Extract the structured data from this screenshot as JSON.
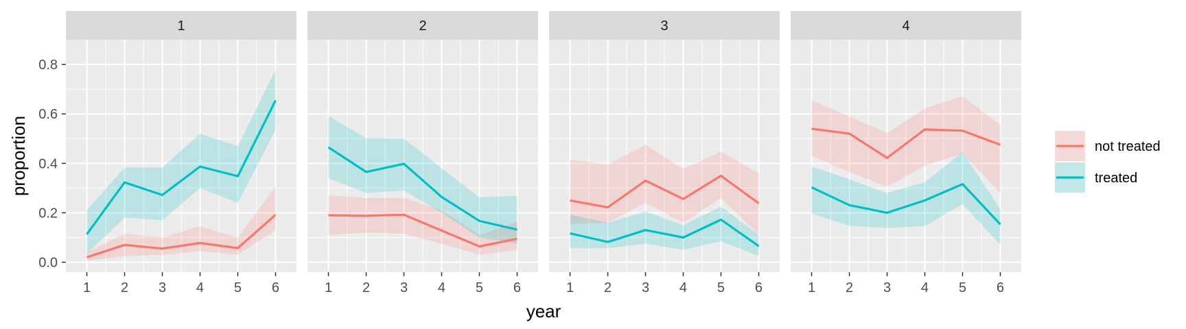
{
  "chart_data": {
    "type": "line",
    "xlabel": "year",
    "ylabel": "proportion",
    "x": [
      1,
      2,
      3,
      4,
      5,
      6
    ],
    "xticks": [
      "1",
      "2",
      "3",
      "4",
      "5",
      "6"
    ],
    "ylim": [
      -0.04,
      0.9
    ],
    "yticks": [
      "0.0",
      "0.2",
      "0.4",
      "0.6",
      "0.8"
    ],
    "grid": true,
    "legend_position": "right",
    "colors": {
      "not treated": "#F8766D",
      "treated": "#00BFC4"
    },
    "panels": [
      {
        "label": "1",
        "series": [
          {
            "name": "not treated",
            "values": [
              0.02,
              0.07,
              0.055,
              0.078,
              0.057,
              0.192
            ],
            "lower": [
              0.005,
              0.025,
              0.03,
              0.045,
              0.03,
              0.13
            ],
            "upper": [
              0.04,
              0.115,
              0.1,
              0.145,
              0.1,
              0.305
            ]
          },
          {
            "name": "treated",
            "values": [
              0.113,
              0.323,
              0.272,
              0.387,
              0.348,
              0.655
            ],
            "lower": [
              0.035,
              0.18,
              0.17,
              0.3,
              0.24,
              0.535
            ],
            "upper": [
              0.21,
              0.383,
              0.383,
              0.52,
              0.47,
              0.778
            ]
          }
        ]
      },
      {
        "label": "2",
        "series": [
          {
            "name": "not treated",
            "values": [
              0.19,
              0.188,
              0.192,
              0.128,
              0.064,
              0.095
            ],
            "lower": [
              0.11,
              0.12,
              0.115,
              0.075,
              0.03,
              0.05
            ],
            "upper": [
              0.27,
              0.26,
              0.26,
              0.21,
              0.11,
              0.165
            ]
          },
          {
            "name": "treated",
            "values": [
              0.465,
              0.365,
              0.398,
              0.264,
              0.167,
              0.132
            ],
            "lower": [
              0.34,
              0.28,
              0.29,
              0.2,
              0.1,
              0.075
            ],
            "upper": [
              0.592,
              0.502,
              0.5,
              0.38,
              0.263,
              0.268
            ]
          }
        ]
      },
      {
        "label": "3",
        "series": [
          {
            "name": "not treated",
            "values": [
              0.25,
              0.222,
              0.33,
              0.256,
              0.35,
              0.238
            ],
            "lower": [
              0.155,
              0.16,
              0.24,
              0.16,
              0.26,
              0.11
            ],
            "upper": [
              0.415,
              0.395,
              0.475,
              0.378,
              0.448,
              0.36
            ]
          },
          {
            "name": "treated",
            "values": [
              0.117,
              0.082,
              0.13,
              0.1,
              0.172,
              0.065
            ],
            "lower": [
              0.058,
              0.057,
              0.075,
              0.05,
              0.085,
              0.025
            ],
            "upper": [
              0.192,
              0.16,
              0.205,
              0.15,
              0.225,
              0.11
            ]
          }
        ]
      },
      {
        "label": "4",
        "series": [
          {
            "name": "not treated",
            "values": [
              0.54,
              0.52,
              0.422,
              0.537,
              0.532,
              0.475
            ],
            "lower": [
              0.43,
              0.365,
              0.305,
              0.39,
              0.44,
              0.28
            ],
            "upper": [
              0.655,
              0.59,
              0.522,
              0.622,
              0.672,
              0.555
            ]
          },
          {
            "name": "treated",
            "values": [
              0.303,
              0.231,
              0.2,
              0.25,
              0.316,
              0.153
            ],
            "lower": [
              0.197,
              0.148,
              0.138,
              0.147,
              0.235,
              0.07
            ],
            "upper": [
              0.387,
              0.335,
              0.28,
              0.324,
              0.445,
              0.215
            ]
          }
        ]
      }
    ]
  }
}
